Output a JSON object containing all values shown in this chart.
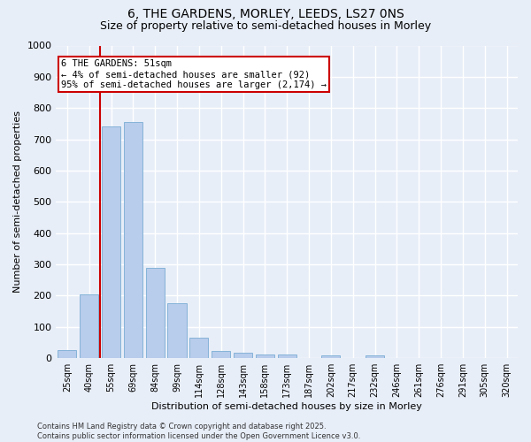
{
  "title_line1": "6, THE GARDENS, MORLEY, LEEDS, LS27 0NS",
  "title_line2": "Size of property relative to semi-detached houses in Morley",
  "xlabel": "Distribution of semi-detached houses by size in Morley",
  "ylabel": "Number of semi-detached properties",
  "categories": [
    "25sqm",
    "40sqm",
    "55sqm",
    "69sqm",
    "84sqm",
    "99sqm",
    "114sqm",
    "128sqm",
    "143sqm",
    "158sqm",
    "173sqm",
    "187sqm",
    "202sqm",
    "217sqm",
    "232sqm",
    "246sqm",
    "261sqm",
    "276sqm",
    "291sqm",
    "305sqm",
    "320sqm"
  ],
  "values": [
    25,
    205,
    740,
    755,
    290,
    175,
    65,
    22,
    18,
    13,
    13,
    0,
    8,
    0,
    8,
    0,
    0,
    0,
    0,
    0,
    0
  ],
  "bar_color": "#b8cceb",
  "bar_edge_color": "#7aadd4",
  "vline_color": "#cc0000",
  "ylim": [
    0,
    1000
  ],
  "yticks": [
    0,
    100,
    200,
    300,
    400,
    500,
    600,
    700,
    800,
    900,
    1000
  ],
  "annotation_text": "6 THE GARDENS: 51sqm\n← 4% of semi-detached houses are smaller (92)\n95% of semi-detached houses are larger (2,174) →",
  "annotation_box_color": "#ffffff",
  "annotation_box_edge": "#cc0000",
  "footer_line1": "Contains HM Land Registry data © Crown copyright and database right 2025.",
  "footer_line2": "Contains public sector information licensed under the Open Government Licence v3.0.",
  "background_color": "#e8eef8",
  "plot_bg_color": "#e8eef8",
  "grid_color": "#ffffff",
  "title_fontsize": 10,
  "subtitle_fontsize": 9
}
